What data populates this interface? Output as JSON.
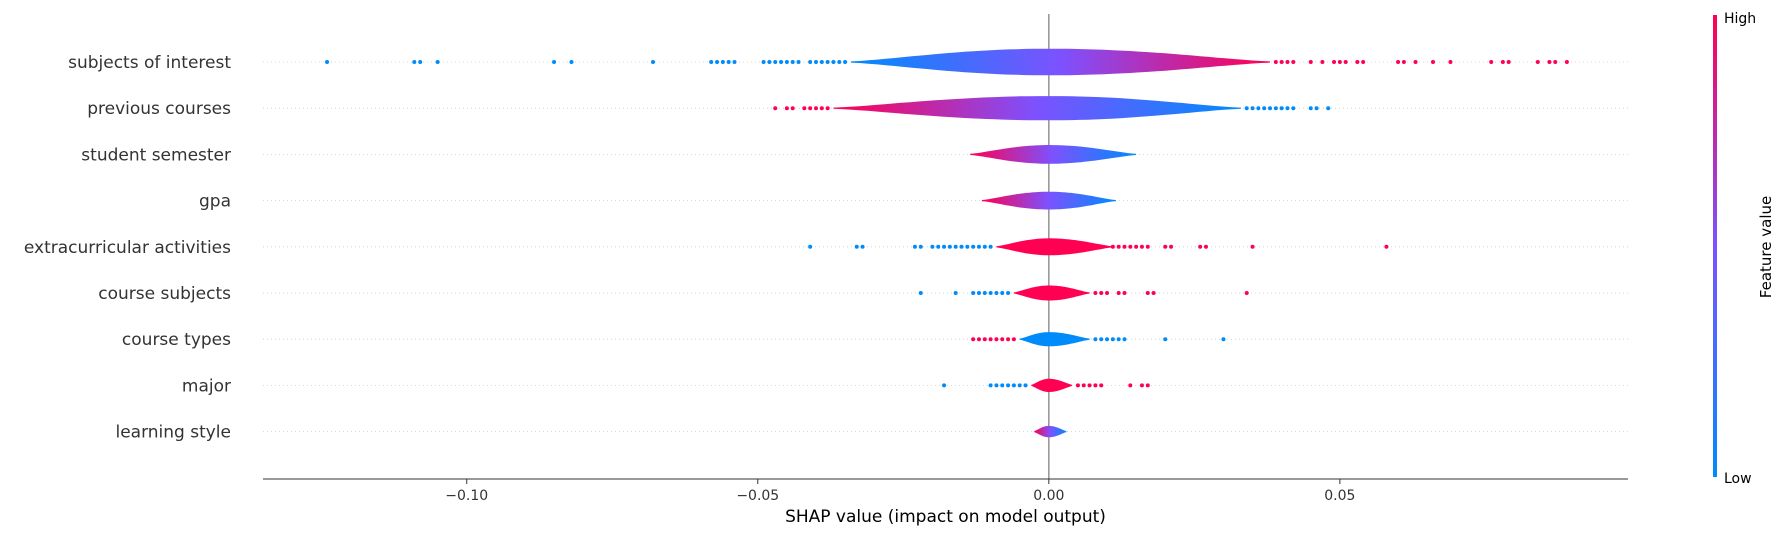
{
  "chart_data": {
    "type": "violin",
    "title": "",
    "xlabel": "SHAP value (impact on model output)",
    "xlim": [
      -0.135,
      0.0995
    ],
    "x_ticks": [
      -0.1,
      -0.05,
      0.0,
      0.05
    ],
    "x_tick_labels": [
      "−0.10",
      "−0.05",
      "0.00",
      "0.05"
    ],
    "zero_line": 0,
    "colorbar": {
      "title": "Feature value",
      "high_label": "High",
      "low_label": "Low",
      "low_color": "#008bfb",
      "mid_color": "#7c52ff",
      "high_color": "#ff0052"
    },
    "features": [
      {
        "name": "subjects of interest",
        "body_range": [
          -0.034,
          0.038
        ],
        "max_half_width": 0.55,
        "color_low_end": 0.0,
        "color_high_end": 1.0,
        "outliers": [
          [
            -0.124,
            0
          ],
          [
            -0.109,
            0
          ],
          [
            -0.108,
            0
          ],
          [
            -0.105,
            0
          ],
          [
            -0.085,
            0
          ],
          [
            -0.082,
            0
          ],
          [
            -0.068,
            0
          ],
          [
            -0.058,
            0
          ],
          [
            -0.057,
            0
          ],
          [
            -0.056,
            0
          ],
          [
            -0.055,
            0
          ],
          [
            -0.054,
            0
          ],
          [
            -0.049,
            0
          ],
          [
            -0.048,
            0
          ],
          [
            -0.047,
            0
          ],
          [
            -0.046,
            0
          ],
          [
            -0.045,
            0
          ],
          [
            -0.044,
            0
          ],
          [
            -0.043,
            0
          ],
          [
            -0.041,
            0
          ],
          [
            -0.04,
            0
          ],
          [
            -0.039,
            0
          ],
          [
            -0.038,
            0
          ],
          [
            -0.037,
            0
          ],
          [
            -0.036,
            0
          ],
          [
            -0.035,
            0
          ],
          [
            0.039,
            1
          ],
          [
            0.04,
            1
          ],
          [
            0.041,
            1
          ],
          [
            0.042,
            1
          ],
          [
            0.045,
            1
          ],
          [
            0.047,
            1
          ],
          [
            0.049,
            1
          ],
          [
            0.05,
            1
          ],
          [
            0.051,
            1
          ],
          [
            0.053,
            1
          ],
          [
            0.054,
            1
          ],
          [
            0.06,
            1
          ],
          [
            0.061,
            1
          ],
          [
            0.063,
            1
          ],
          [
            0.066,
            1
          ],
          [
            0.069,
            1
          ],
          [
            0.076,
            1
          ],
          [
            0.078,
            1
          ],
          [
            0.079,
            1
          ],
          [
            0.084,
            1
          ],
          [
            0.086,
            1
          ],
          [
            0.087,
            1
          ],
          [
            0.089,
            1
          ]
        ]
      },
      {
        "name": "previous courses",
        "body_range": [
          -0.037,
          0.033
        ],
        "max_half_width": 0.5,
        "color_low_end": 1.0,
        "color_high_end": 0.0,
        "outliers": [
          [
            -0.047,
            1
          ],
          [
            -0.045,
            1
          ],
          [
            -0.044,
            1
          ],
          [
            -0.042,
            1
          ],
          [
            -0.041,
            1
          ],
          [
            -0.04,
            1
          ],
          [
            -0.039,
            1
          ],
          [
            -0.038,
            1
          ],
          [
            0.034,
            0
          ],
          [
            0.035,
            0
          ],
          [
            0.036,
            0
          ],
          [
            0.037,
            0
          ],
          [
            0.038,
            0
          ],
          [
            0.039,
            0
          ],
          [
            0.04,
            0
          ],
          [
            0.041,
            0
          ],
          [
            0.042,
            0
          ],
          [
            0.045,
            0
          ],
          [
            0.046,
            0
          ],
          [
            0.048,
            0
          ]
        ]
      },
      {
        "name": "student semester",
        "body_range": [
          -0.0135,
          0.015
        ],
        "max_half_width": 0.38,
        "color_low_end": 1.0,
        "color_high_end": 0.0,
        "outliers": []
      },
      {
        "name": "gpa",
        "body_range": [
          -0.0115,
          0.0115
        ],
        "max_half_width": 0.36,
        "color_low_end": 1.0,
        "color_high_end": 0.0,
        "outliers": []
      },
      {
        "name": "extracurricular activities",
        "body_range": [
          -0.009,
          0.011
        ],
        "max_half_width": 0.34,
        "color_low_end": 1.0,
        "color_high_end": 1.0,
        "outliers": [
          [
            -0.041,
            0
          ],
          [
            -0.033,
            0
          ],
          [
            -0.032,
            0
          ],
          [
            -0.023,
            0
          ],
          [
            -0.022,
            0
          ],
          [
            -0.02,
            0
          ],
          [
            -0.019,
            0
          ],
          [
            -0.018,
            0
          ],
          [
            -0.017,
            0
          ],
          [
            -0.016,
            0
          ],
          [
            -0.015,
            0
          ],
          [
            -0.014,
            0
          ],
          [
            -0.013,
            0
          ],
          [
            -0.012,
            0
          ],
          [
            -0.011,
            0
          ],
          [
            -0.01,
            0
          ],
          [
            0.011,
            1
          ],
          [
            0.012,
            1
          ],
          [
            0.013,
            1
          ],
          [
            0.014,
            1
          ],
          [
            0.015,
            1
          ],
          [
            0.016,
            1
          ],
          [
            0.017,
            1
          ],
          [
            0.02,
            1
          ],
          [
            0.021,
            1
          ],
          [
            0.026,
            1
          ],
          [
            0.027,
            1
          ],
          [
            0.035,
            1
          ],
          [
            0.058,
            1
          ]
        ]
      },
      {
        "name": "course subjects",
        "body_range": [
          -0.006,
          0.007
        ],
        "max_half_width": 0.3,
        "color_low_end": 1.0,
        "color_high_end": 1.0,
        "outliers": [
          [
            -0.022,
            0
          ],
          [
            -0.016,
            0
          ],
          [
            -0.013,
            0
          ],
          [
            -0.012,
            0
          ],
          [
            -0.011,
            0
          ],
          [
            -0.01,
            0
          ],
          [
            -0.009,
            0
          ],
          [
            -0.008,
            0
          ],
          [
            -0.007,
            0
          ],
          [
            0.008,
            1
          ],
          [
            0.009,
            1
          ],
          [
            0.01,
            1
          ],
          [
            0.012,
            1
          ],
          [
            0.013,
            1
          ],
          [
            0.017,
            1
          ],
          [
            0.018,
            1
          ],
          [
            0.034,
            1
          ]
        ]
      },
      {
        "name": "course types",
        "body_range": [
          -0.005,
          0.007
        ],
        "max_half_width": 0.28,
        "color_low_end": 0.0,
        "color_high_end": 0.0,
        "outliers": [
          [
            -0.013,
            1
          ],
          [
            -0.012,
            1
          ],
          [
            -0.011,
            1
          ],
          [
            -0.01,
            1
          ],
          [
            -0.009,
            1
          ],
          [
            -0.008,
            1
          ],
          [
            -0.007,
            1
          ],
          [
            -0.006,
            1
          ],
          [
            0.008,
            0
          ],
          [
            0.009,
            0
          ],
          [
            0.01,
            0
          ],
          [
            0.011,
            0
          ],
          [
            0.012,
            0
          ],
          [
            0.013,
            0
          ],
          [
            0.02,
            0
          ],
          [
            0.03,
            0
          ]
        ]
      },
      {
        "name": "major",
        "body_range": [
          -0.003,
          0.004
        ],
        "max_half_width": 0.26,
        "color_low_end": 1.0,
        "color_high_end": 1.0,
        "outliers": [
          [
            -0.018,
            0
          ],
          [
            -0.01,
            0
          ],
          [
            -0.009,
            0
          ],
          [
            -0.008,
            0
          ],
          [
            -0.007,
            0
          ],
          [
            -0.006,
            0
          ],
          [
            -0.005,
            0
          ],
          [
            -0.004,
            0
          ],
          [
            0.005,
            1
          ],
          [
            0.006,
            1
          ],
          [
            0.007,
            1
          ],
          [
            0.008,
            1
          ],
          [
            0.009,
            1
          ],
          [
            0.014,
            1
          ],
          [
            0.016,
            1
          ],
          [
            0.017,
            1
          ]
        ]
      },
      {
        "name": "learning style",
        "body_range": [
          -0.0025,
          0.003
        ],
        "max_half_width": 0.22,
        "color_low_end": 1.0,
        "color_high_end": 0.0,
        "outliers": []
      }
    ]
  }
}
